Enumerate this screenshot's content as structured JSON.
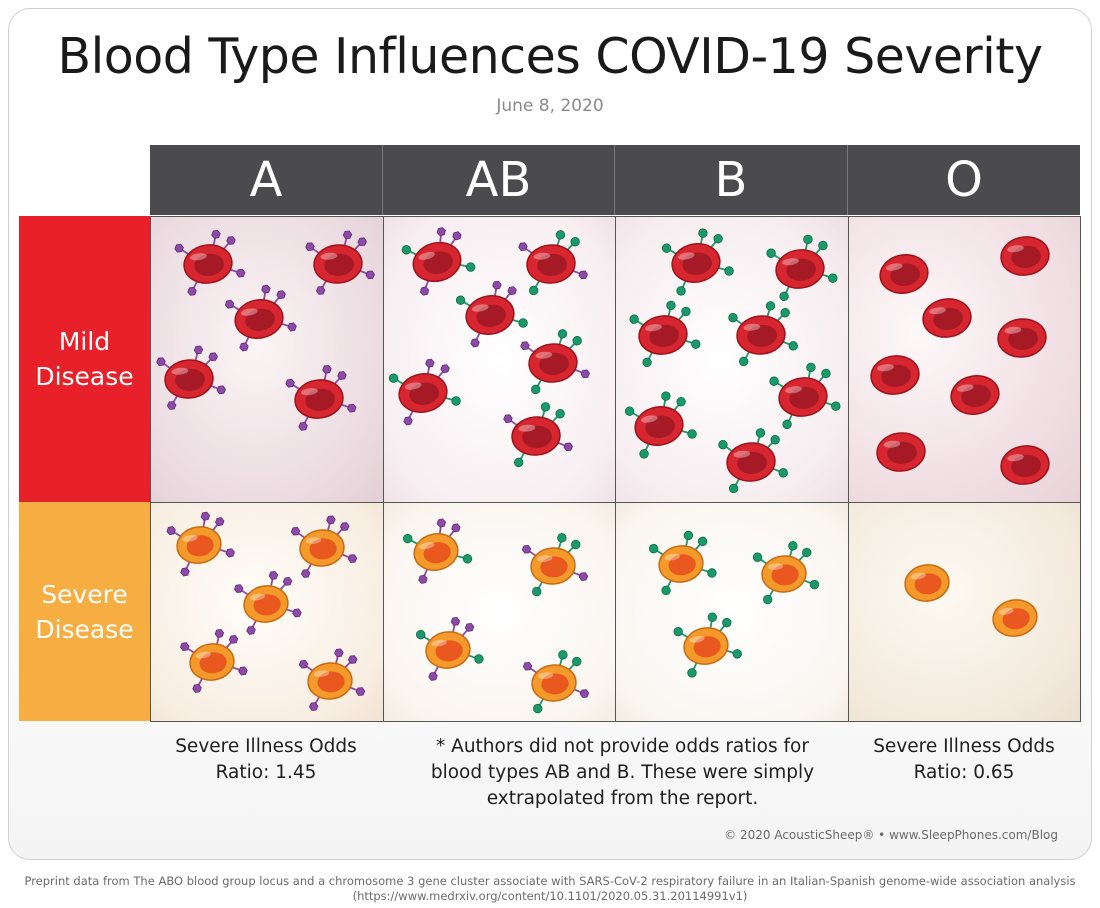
{
  "title": "Blood Type Influences COVID-19 Severity",
  "date": "June 8, 2020",
  "columns": [
    "A",
    "AB",
    "B",
    "O"
  ],
  "rows": [
    {
      "line1": "Mild",
      "line2": "Disease",
      "color": "#e8202a"
    },
    {
      "line1": "Severe",
      "line2": "Disease",
      "color": "#f6ae42"
    }
  ],
  "colors": {
    "header_bg": "#4b4b4d",
    "mild_cell": "#d7262f",
    "severe_cell": "#f29a2e",
    "antigen_a": "#8e4aa8",
    "antigen_b": "#1a9a6a"
  },
  "cell_contents": [
    {
      "row": "mild",
      "blood_type": "A",
      "cells": 5,
      "antigens": "A"
    },
    {
      "row": "mild",
      "blood_type": "AB",
      "cells": 6,
      "antigens": "A and B"
    },
    {
      "row": "mild",
      "blood_type": "B",
      "cells": 7,
      "antigens": "B"
    },
    {
      "row": "mild",
      "blood_type": "O",
      "cells": 8,
      "antigens": "none"
    },
    {
      "row": "severe",
      "blood_type": "A",
      "cells": 5,
      "antigens": "A"
    },
    {
      "row": "severe",
      "blood_type": "AB",
      "cells": 4,
      "antigens": "A and B"
    },
    {
      "row": "severe",
      "blood_type": "B",
      "cells": 3,
      "antigens": "B"
    },
    {
      "row": "severe",
      "blood_type": "O",
      "cells": 2,
      "antigens": "none"
    }
  ],
  "captions": {
    "a": {
      "line1": "Severe Illness Odds",
      "line2": "Ratio: 1.45"
    },
    "note": {
      "line1": "* Authors did not provide odds ratios for",
      "line2": "blood types AB and B. These were simply",
      "line3": "extrapolated from the report."
    },
    "o": {
      "line1": "Severe Illness Odds",
      "line2": "Ratio: 0.65"
    }
  },
  "copyright": "© 2020 AcousticSheep® • www.SleepPhones.com/Blog",
  "preprint": {
    "line1": "Preprint data from The ABO blood group locus and a chromosome 3 gene cluster associate with SARS-CoV-2 respiratory failure in an Italian-Spanish genome-wide association analysis",
    "line2": "(https://www.medrxiv.org/content/10.1101/2020.05.31.20114991v1)"
  }
}
